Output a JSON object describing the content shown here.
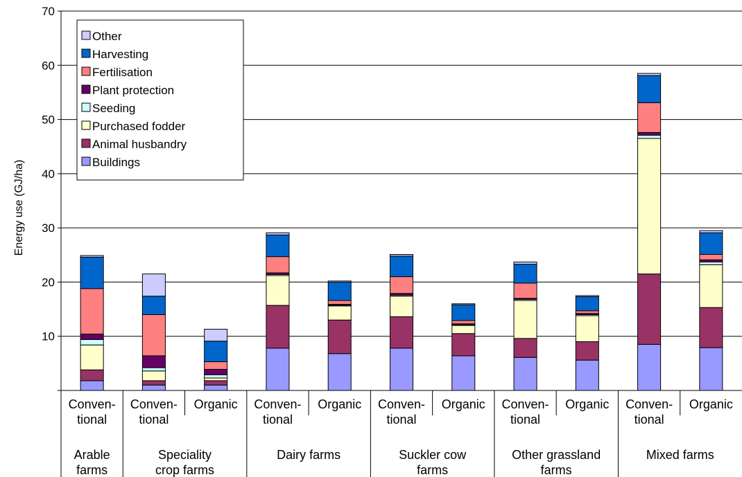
{
  "chart_data": {
    "type": "bar",
    "stacked": true,
    "ylabel": "Energy use (GJ/ha)",
    "ylim": [
      0,
      70
    ],
    "yticks": [
      10,
      20,
      30,
      40,
      50,
      60,
      70
    ],
    "grid": true,
    "legend_position": "top-left",
    "bars": [
      {
        "label_lines": [
          "Conven-",
          "tional"
        ],
        "group": 0
      },
      {
        "label_lines": [
          "Conven-",
          "tional"
        ],
        "group": 1
      },
      {
        "label_lines": [
          "Organic"
        ],
        "group": 1
      },
      {
        "label_lines": [
          "Conven-",
          "tional"
        ],
        "group": 2
      },
      {
        "label_lines": [
          "Organic"
        ],
        "group": 2
      },
      {
        "label_lines": [
          "Conven-",
          "tional"
        ],
        "group": 3
      },
      {
        "label_lines": [
          "Organic"
        ],
        "group": 3
      },
      {
        "label_lines": [
          "Conven-",
          "tional"
        ],
        "group": 4
      },
      {
        "label_lines": [
          "Organic"
        ],
        "group": 4
      },
      {
        "label_lines": [
          "Conven-",
          "tional"
        ],
        "group": 5
      },
      {
        "label_lines": [
          "Organic"
        ],
        "group": 5
      }
    ],
    "groups": [
      {
        "label_lines": [
          "Arable",
          "farms"
        ]
      },
      {
        "label_lines": [
          "Speciality",
          "crop farms"
        ]
      },
      {
        "label_lines": [
          "Dairy farms"
        ]
      },
      {
        "label_lines": [
          "Suckler cow",
          "farms"
        ]
      },
      {
        "label_lines": [
          "Other grassland",
          "farms"
        ]
      },
      {
        "label_lines": [
          "Mixed farms"
        ]
      }
    ],
    "series": [
      {
        "name": "Buildings",
        "color": "#9999ff",
        "values": [
          1.8,
          1.0,
          1.0,
          7.8,
          6.8,
          7.8,
          6.4,
          6.1,
          5.6,
          8.5,
          7.9
        ]
      },
      {
        "name": "Animal husbandry",
        "color": "#993366",
        "values": [
          2.0,
          0.8,
          0.8,
          7.9,
          6.2,
          5.8,
          4.1,
          3.5,
          3.4,
          13.0,
          7.4
        ]
      },
      {
        "name": "Purchased fodder",
        "color": "#ffffcc",
        "values": [
          4.6,
          1.8,
          0.5,
          5.5,
          2.6,
          3.8,
          1.5,
          7.0,
          4.8,
          25.0,
          7.9
        ]
      },
      {
        "name": "Seeding",
        "color": "#ccffff",
        "values": [
          1.0,
          0.6,
          0.6,
          0.2,
          0.1,
          0.2,
          0.1,
          0.2,
          0.2,
          0.6,
          0.5
        ]
      },
      {
        "name": "Plant protection",
        "color": "#660066",
        "values": [
          1.0,
          2.2,
          1.0,
          0.3,
          0.2,
          0.3,
          0.2,
          0.2,
          0.2,
          0.5,
          0.4
        ]
      },
      {
        "name": "Fertilisation",
        "color": "#ff8080",
        "values": [
          8.4,
          7.6,
          1.4,
          3.0,
          0.7,
          3.1,
          0.6,
          2.8,
          0.5,
          5.5,
          1.0
        ]
      },
      {
        "name": "Harvesting",
        "color": "#0066cc",
        "values": [
          5.8,
          3.4,
          3.8,
          4.0,
          3.4,
          3.8,
          2.9,
          3.5,
          2.6,
          5.0,
          4.0
        ]
      },
      {
        "name": "Other",
        "color": "#ccccff",
        "values": [
          0.3,
          4.1,
          2.2,
          0.4,
          0.2,
          0.3,
          0.2,
          0.4,
          0.2,
          0.4,
          0.4
        ]
      }
    ]
  }
}
